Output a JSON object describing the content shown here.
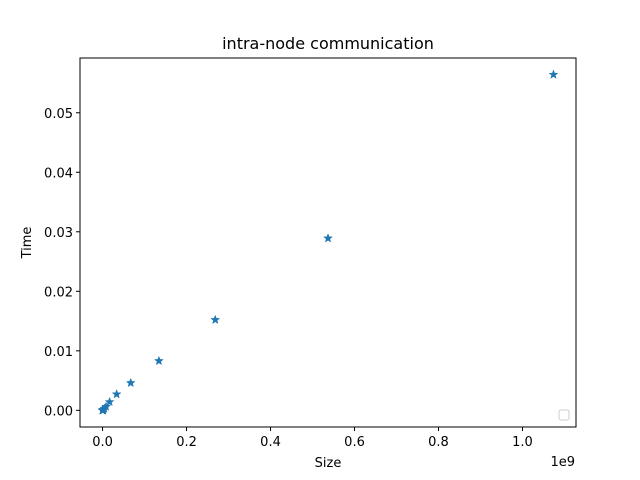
{
  "chart_data": {
    "type": "scatter",
    "title": "intra-node communication",
    "xlabel": "Size",
    "ylabel": "Time",
    "x_offset_label": "1e9",
    "xlim": [
      -0.0537,
      1.1274
    ],
    "ylim": [
      -0.0028,
      0.0592
    ],
    "x_ticks": [
      0.0,
      0.2,
      0.4,
      0.6,
      0.8,
      1.0
    ],
    "x_tick_labels": [
      "0.0",
      "0.2",
      "0.4",
      "0.6",
      "0.8",
      "1.0"
    ],
    "y_ticks": [
      0.0,
      0.01,
      0.02,
      0.03,
      0.04,
      0.05
    ],
    "y_tick_labels": [
      "0.00",
      "0.01",
      "0.02",
      "0.03",
      "0.04",
      "0.05"
    ],
    "grid": false,
    "legend": "lower-right (empty)",
    "marker": "star",
    "color": "#1f77b4",
    "series": [
      {
        "x": [
          1e-06,
          2e-06,
          4e-06,
          8e-06,
          1.6e-05,
          3.3e-05,
          6.6e-05,
          0.000131,
          0.000262,
          0.000524,
          0.001049,
          0.002097,
          0.004194,
          0.008389,
          0.016777,
          0.033554,
          0.067109,
          0.134218,
          0.268435,
          0.536871,
          1.073742
        ],
        "y": [
          0.0,
          0.0,
          0.0,
          0.0,
          0.0,
          0.0,
          0.0,
          0.0,
          0.0,
          0.0,
          0.0,
          0.0001,
          0.0003,
          0.0006,
          0.0014,
          0.0027,
          0.0046,
          0.0083,
          0.0152,
          0.0289,
          0.0564
        ]
      }
    ]
  }
}
